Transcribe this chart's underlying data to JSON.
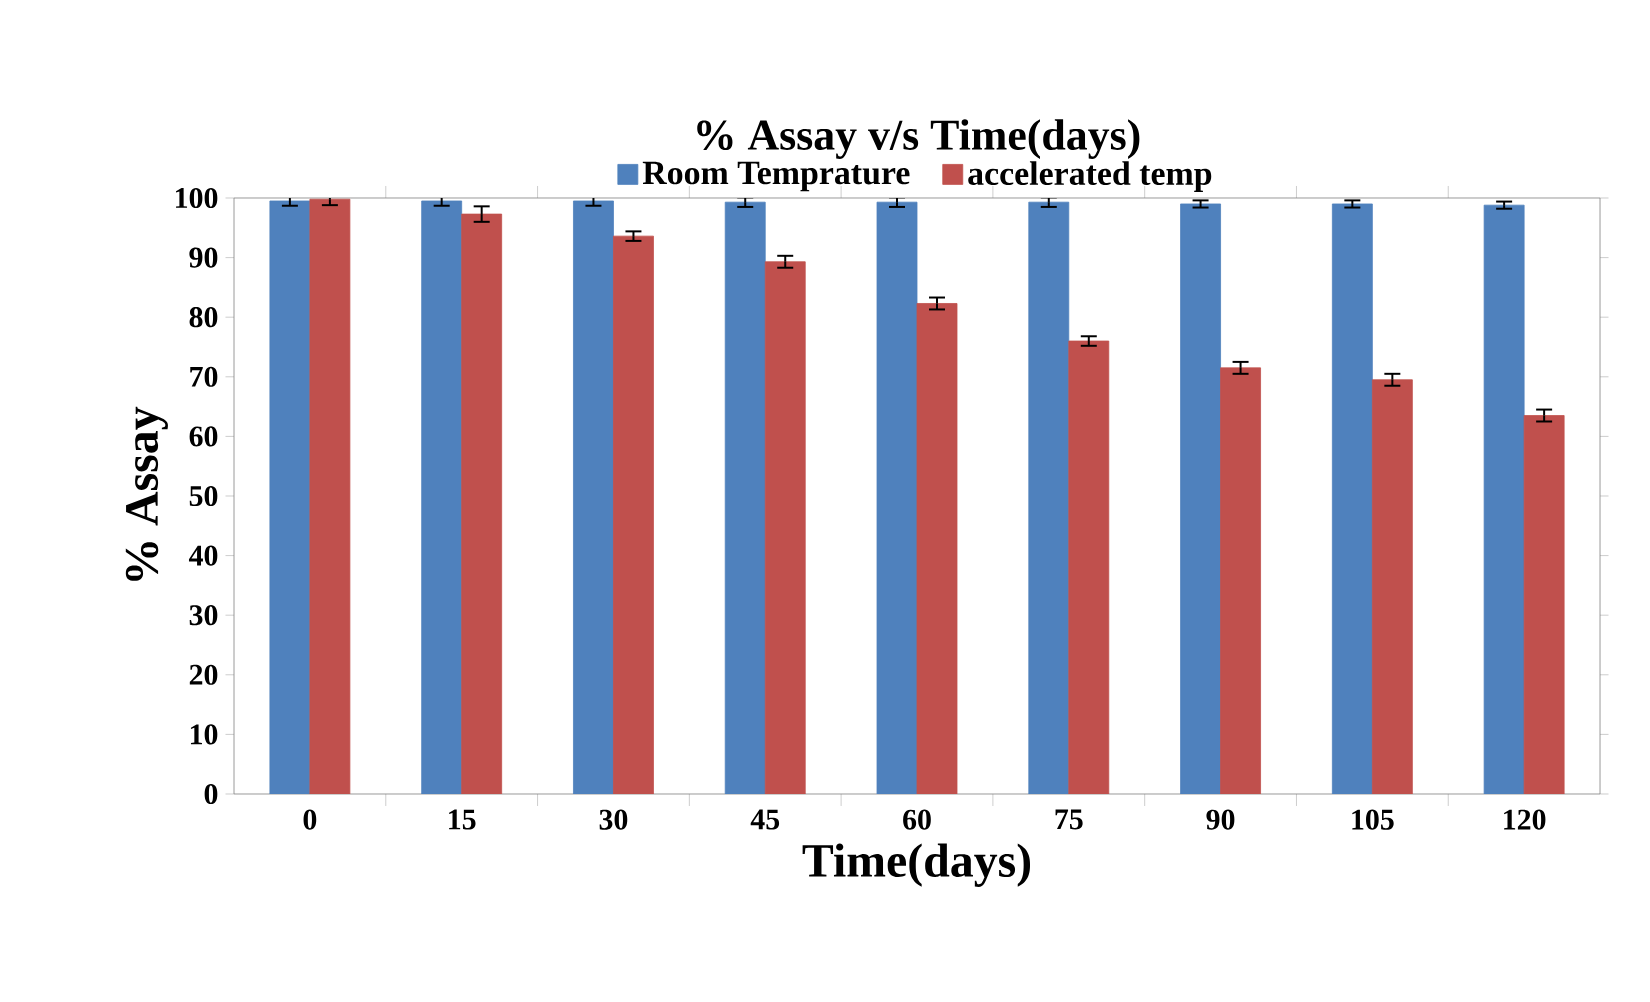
{
  "chart_data": {
    "type": "bar",
    "title": "% Assay v/s Time(days)",
    "xlabel": "Time(days)",
    "ylabel": "% Assay",
    "categories": [
      "0",
      "15",
      "30",
      "45",
      "60",
      "75",
      "90",
      "105",
      "120"
    ],
    "series": [
      {
        "name": "Room Temprature",
        "color": "#4f81bd",
        "values": [
          99.5,
          99.5,
          99.5,
          99.3,
          99.3,
          99.3,
          99,
          99,
          98.8
        ],
        "errors": [
          0.8,
          0.8,
          0.8,
          0.8,
          0.8,
          0.8,
          0.6,
          0.6,
          0.6
        ]
      },
      {
        "name": "accelerated temp",
        "color": "#c0504d",
        "values": [
          99.8,
          97.3,
          93.6,
          89.3,
          82.3,
          76,
          71.5,
          69.5,
          63.5
        ],
        "errors": [
          1,
          1.3,
          0.8,
          1,
          1,
          0.8,
          1,
          1,
          1
        ]
      }
    ],
    "ylim": [
      0,
      100
    ],
    "yticks": [
      0,
      10,
      20,
      30,
      40,
      50,
      60,
      70,
      80,
      90,
      100
    ],
    "grid": false,
    "legend": "top"
  }
}
